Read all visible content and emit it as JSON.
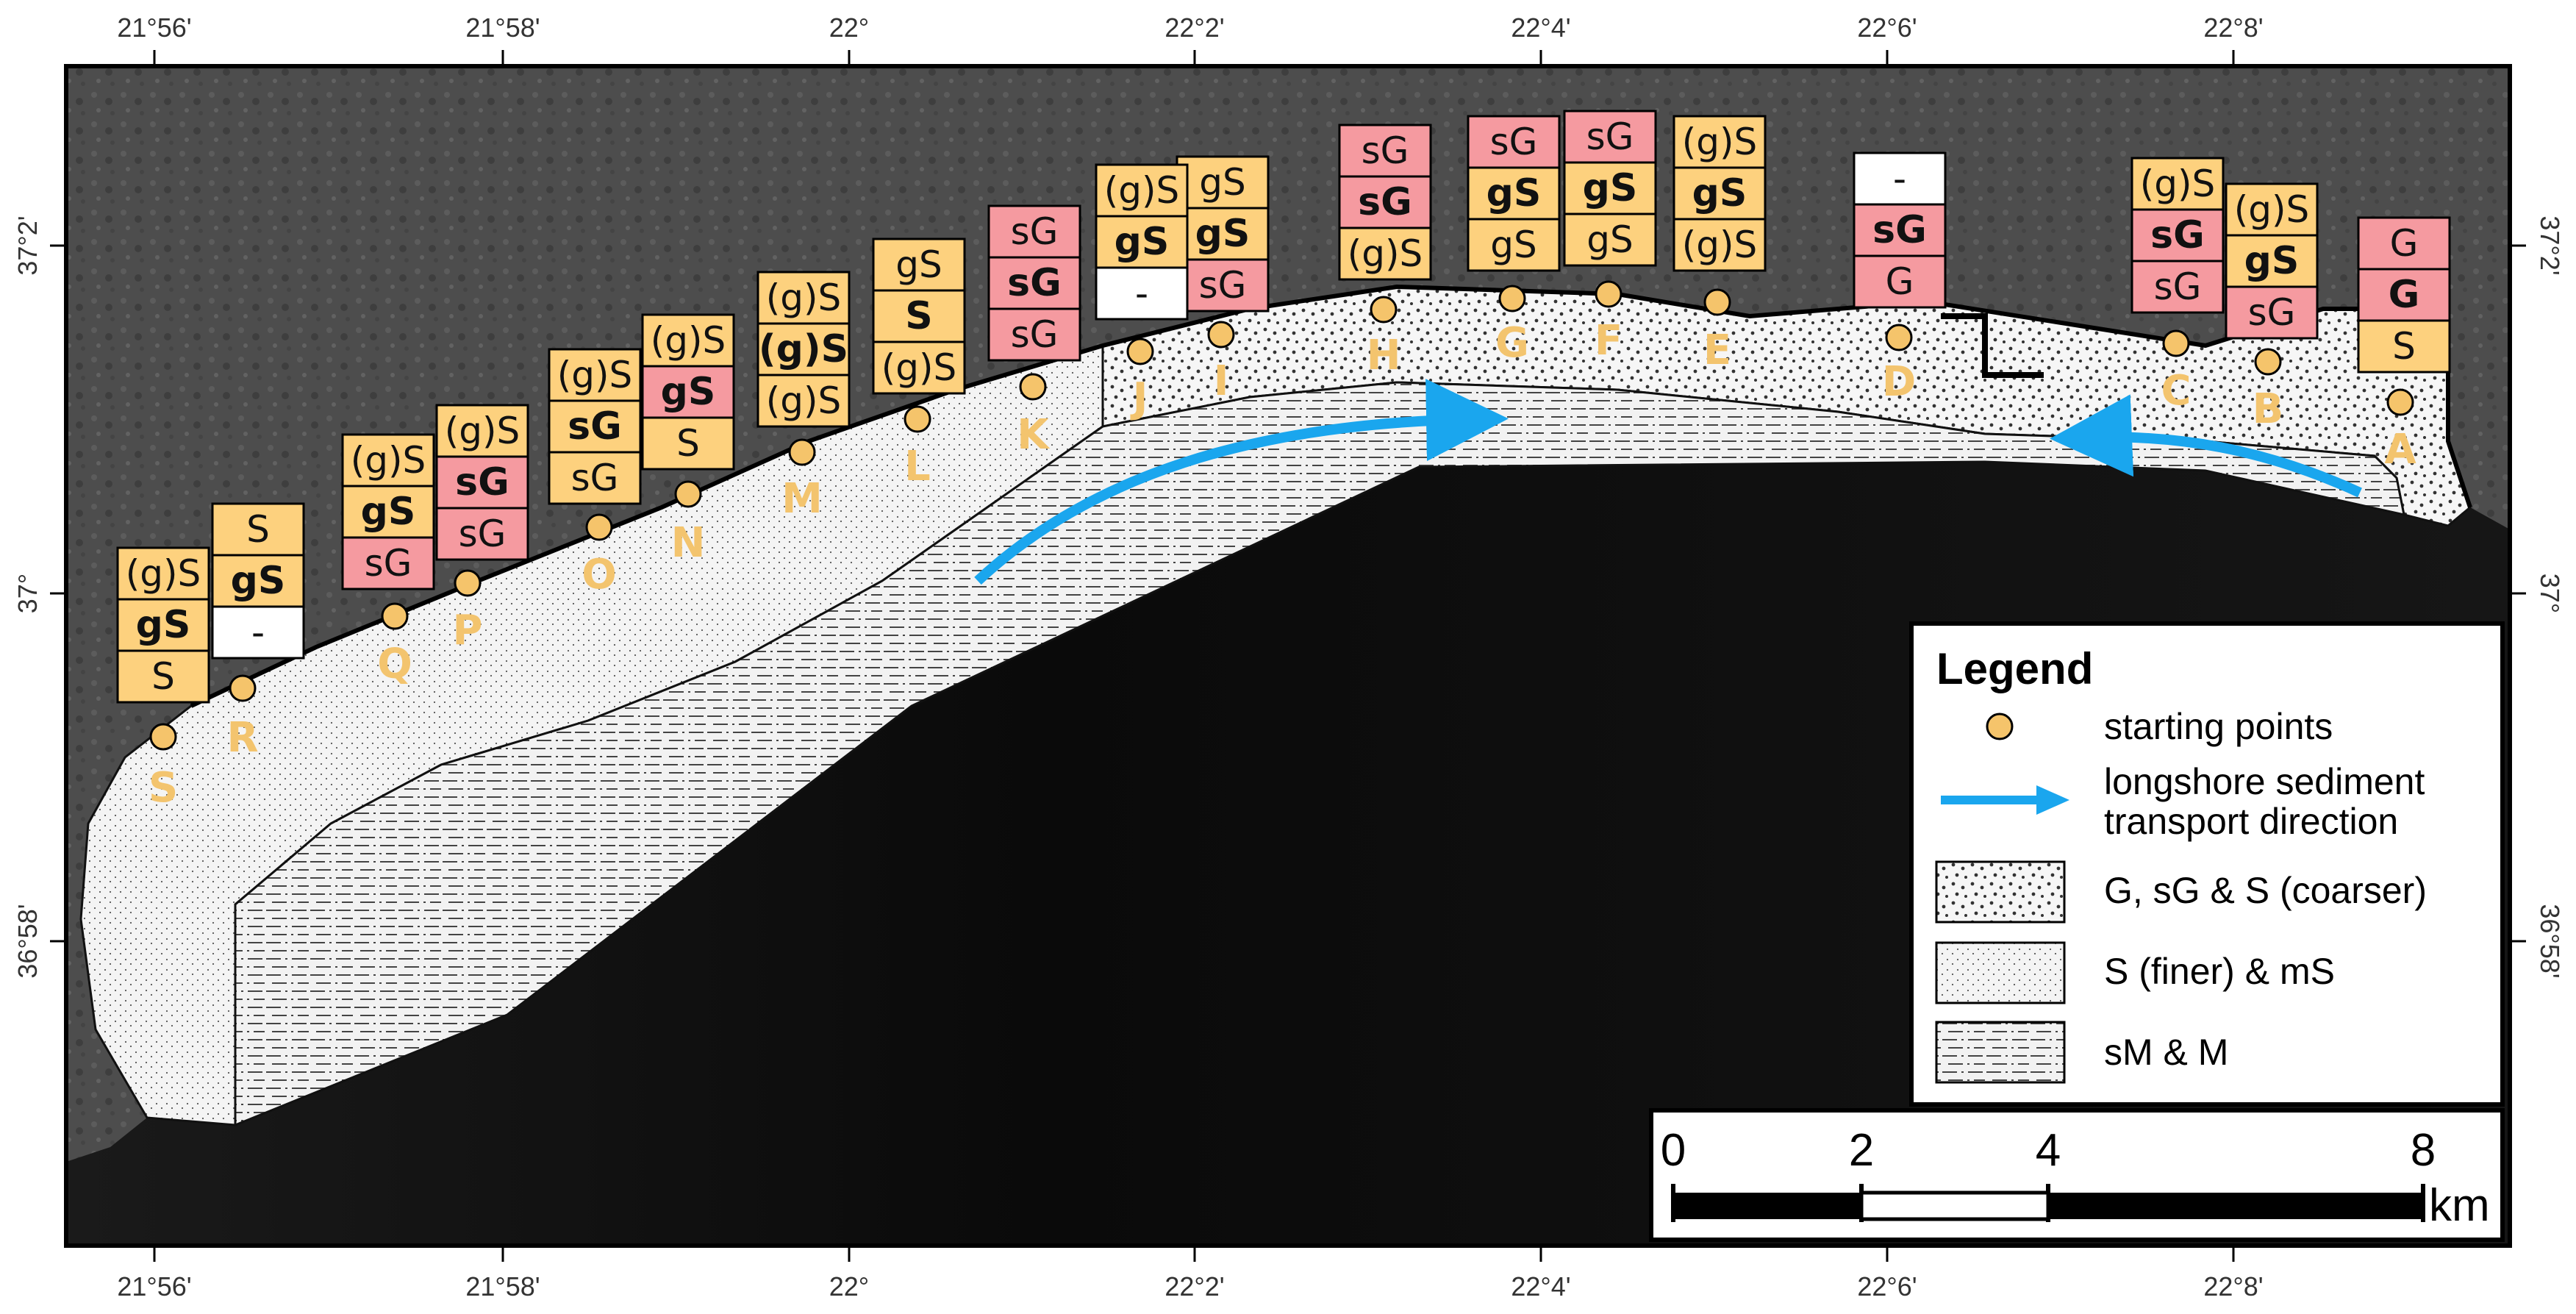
{
  "colors": {
    "sample_yellow": "#fdd17e",
    "sample_red": "#f59aa0",
    "point_fill": "#f5c46b",
    "point_letter": "#f3c46e",
    "arrow_blue": "#1aa6ee",
    "sea": "#0b0b0b",
    "land": "#4a4a4a",
    "sediment": "#f3f3f3"
  },
  "axes": {
    "top_ticks": [
      "21°56'",
      "21°58'",
      "22°",
      "22°2'",
      "22°4'",
      "22°6'",
      "22°8'"
    ],
    "bottom_ticks": [
      "21°56'",
      "21°58'",
      "22°",
      "22°2'",
      "22°4'",
      "22°6'",
      "22°8'"
    ],
    "left_ticks": [
      "37°2'",
      "37°",
      "36°58'"
    ],
    "right_ticks": [
      "37°2'",
      "37°",
      "36°58'"
    ]
  },
  "stations": [
    {
      "id": "A",
      "samples": [
        {
          "text": "G",
          "bold": false,
          "color": "red"
        },
        {
          "text": "G",
          "bold": true,
          "color": "red"
        },
        {
          "text": "S",
          "bold": false,
          "color": "yellow"
        }
      ]
    },
    {
      "id": "B",
      "samples": [
        {
          "text": "(g)S",
          "bold": false,
          "color": "yellow"
        },
        {
          "text": "gS",
          "bold": true,
          "color": "yellow"
        },
        {
          "text": "sG",
          "bold": false,
          "color": "red"
        }
      ]
    },
    {
      "id": "C",
      "samples": [
        {
          "text": "(g)S",
          "bold": false,
          "color": "yellow"
        },
        {
          "text": "sG",
          "bold": true,
          "color": "red"
        },
        {
          "text": "sG",
          "bold": false,
          "color": "red"
        }
      ]
    },
    {
      "id": "D",
      "samples": [
        {
          "text": "-",
          "bold": false,
          "color": "white"
        },
        {
          "text": "sG",
          "bold": true,
          "color": "red"
        },
        {
          "text": "G",
          "bold": false,
          "color": "red"
        }
      ]
    },
    {
      "id": "E",
      "samples": [
        {
          "text": "(g)S",
          "bold": false,
          "color": "yellow"
        },
        {
          "text": "gS",
          "bold": true,
          "color": "yellow"
        },
        {
          "text": "(g)S",
          "bold": false,
          "color": "yellow"
        }
      ]
    },
    {
      "id": "F",
      "samples": [
        {
          "text": "sG",
          "bold": false,
          "color": "red"
        },
        {
          "text": "gS",
          "bold": true,
          "color": "yellow"
        },
        {
          "text": "gS",
          "bold": false,
          "color": "yellow"
        }
      ]
    },
    {
      "id": "G",
      "samples": [
        {
          "text": "sG",
          "bold": false,
          "color": "red"
        },
        {
          "text": "gS",
          "bold": true,
          "color": "yellow"
        },
        {
          "text": "gS",
          "bold": false,
          "color": "yellow"
        }
      ]
    },
    {
      "id": "H",
      "samples": [
        {
          "text": "sG",
          "bold": false,
          "color": "red"
        },
        {
          "text": "sG",
          "bold": true,
          "color": "red"
        },
        {
          "text": "(g)S",
          "bold": false,
          "color": "yellow"
        }
      ]
    },
    {
      "id": "I",
      "samples": [
        {
          "text": "gS",
          "bold": false,
          "color": "yellow"
        },
        {
          "text": "gS",
          "bold": true,
          "color": "yellow"
        },
        {
          "text": "sG",
          "bold": false,
          "color": "red"
        }
      ]
    },
    {
      "id": "J",
      "samples": [
        {
          "text": "(g)S",
          "bold": false,
          "color": "yellow"
        },
        {
          "text": "gS",
          "bold": true,
          "color": "yellow"
        },
        {
          "text": "-",
          "bold": false,
          "color": "white"
        }
      ]
    },
    {
      "id": "K",
      "samples": [
        {
          "text": "sG",
          "bold": false,
          "color": "red"
        },
        {
          "text": "sG",
          "bold": true,
          "color": "red"
        },
        {
          "text": "sG",
          "bold": false,
          "color": "red"
        }
      ]
    },
    {
      "id": "L",
      "samples": [
        {
          "text": "gS",
          "bold": false,
          "color": "yellow"
        },
        {
          "text": "S",
          "bold": true,
          "color": "yellow"
        },
        {
          "text": "(g)S",
          "bold": false,
          "color": "yellow"
        }
      ]
    },
    {
      "id": "M",
      "samples": [
        {
          "text": "(g)S",
          "bold": false,
          "color": "yellow"
        },
        {
          "text": "(g)S",
          "bold": true,
          "color": "yellow"
        },
        {
          "text": "(g)S",
          "bold": false,
          "color": "yellow"
        }
      ]
    },
    {
      "id": "N",
      "samples": [
        {
          "text": "(g)S",
          "bold": false,
          "color": "yellow"
        },
        {
          "text": "gS",
          "bold": true,
          "color": "red"
        },
        {
          "text": "S",
          "bold": false,
          "color": "yellow"
        }
      ]
    },
    {
      "id": "O",
      "samples": [
        {
          "text": "(g)S",
          "bold": false,
          "color": "yellow"
        },
        {
          "text": "sG",
          "bold": true,
          "color": "yellow"
        },
        {
          "text": "sG",
          "bold": false,
          "color": "yellow"
        }
      ]
    },
    {
      "id": "P",
      "samples": [
        {
          "text": "(g)S",
          "bold": false,
          "color": "yellow"
        },
        {
          "text": "sG",
          "bold": true,
          "color": "red"
        },
        {
          "text": "sG",
          "bold": false,
          "color": "red"
        }
      ]
    },
    {
      "id": "Q",
      "samples": [
        {
          "text": "(g)S",
          "bold": false,
          "color": "yellow"
        },
        {
          "text": "gS",
          "bold": true,
          "color": "yellow"
        },
        {
          "text": "sG",
          "bold": false,
          "color": "red"
        }
      ]
    },
    {
      "id": "R",
      "samples": [
        {
          "text": "S",
          "bold": false,
          "color": "yellow"
        },
        {
          "text": "gS",
          "bold": true,
          "color": "yellow"
        },
        {
          "text": "-",
          "bold": false,
          "color": "white"
        }
      ]
    },
    {
      "id": "S",
      "samples": [
        {
          "text": "(g)S",
          "bold": false,
          "color": "yellow"
        },
        {
          "text": "gS",
          "bold": true,
          "color": "yellow"
        },
        {
          "text": "S",
          "bold": false,
          "color": "yellow"
        }
      ]
    }
  ],
  "legend": {
    "title": "Legend",
    "starting_points": "starting points",
    "transport_line1": "longshore sediment",
    "transport_line2": "transport direction",
    "coarser": "G, sG & S (coarser)",
    "finer": "S (finer) & mS",
    "mud": "sM & M"
  },
  "scale_bar": {
    "labels": [
      "0",
      "2",
      "4",
      "8"
    ],
    "unit": "km"
  }
}
